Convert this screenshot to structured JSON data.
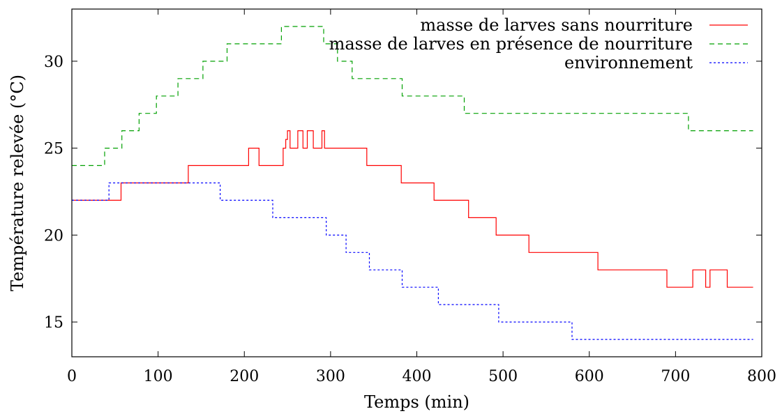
{
  "chart_data": {
    "type": "line",
    "xlabel": "Temps (min)",
    "ylabel": "Température relevée (°C)",
    "xlim": [
      0,
      800
    ],
    "ylim": [
      13,
      33
    ],
    "xticks": [
      0,
      100,
      200,
      300,
      400,
      500,
      600,
      700,
      800
    ],
    "yticks": [
      15,
      20,
      25,
      30
    ],
    "grid": false,
    "legend_position": "top-right",
    "series": [
      {
        "name": "masse de larves sans nourriture",
        "color": "#ff0000",
        "dash": "solid",
        "step": true,
        "x": [
          0,
          57,
          135,
          205,
          217,
          245,
          248,
          250,
          253,
          262,
          268,
          273,
          280,
          290,
          293,
          297,
          342,
          382,
          420,
          460,
          492,
          530,
          610,
          690,
          720,
          735,
          740,
          745,
          760,
          790
        ],
        "y": [
          22,
          23,
          24,
          25,
          24,
          25,
          25.5,
          26,
          25,
          26,
          25,
          26,
          25,
          26,
          25,
          25,
          24,
          23,
          22,
          21,
          20,
          19,
          18,
          17,
          18,
          17,
          18,
          18,
          17,
          17
        ]
      },
      {
        "name": "masse de larves en présence de nourriture",
        "color": "#00a000",
        "dash": "dashed",
        "step": true,
        "x": [
          0,
          38,
          58,
          78,
          98,
          123,
          152,
          180,
          243,
          292,
          308,
          325,
          383,
          455,
          715,
          790
        ],
        "y": [
          24,
          25,
          26,
          27,
          28,
          29,
          30,
          31,
          32,
          31,
          30,
          29,
          28,
          27,
          26,
          26
        ]
      },
      {
        "name": "environnement",
        "color": "#0000ff",
        "dash": "dotted",
        "step": true,
        "x": [
          0,
          43,
          172,
          233,
          295,
          318,
          345,
          383,
          425,
          495,
          580,
          790
        ],
        "y": [
          22,
          23,
          22,
          21,
          20,
          19,
          18,
          17,
          16,
          15,
          14,
          14
        ]
      }
    ]
  }
}
